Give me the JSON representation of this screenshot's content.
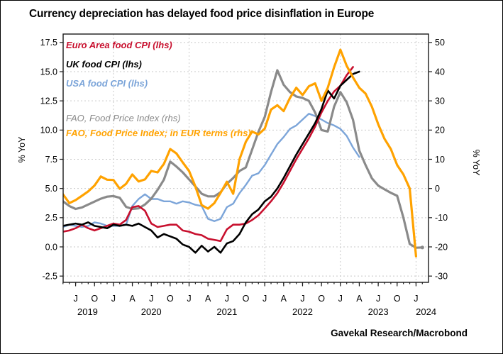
{
  "title": "Currency depreciation has delayed food price disinflation in Europe",
  "source": {
    "text": "Gavekal Research/Macrobond"
  },
  "chart_data": {
    "type": "line",
    "x_start": "2019-05",
    "x_unit": "month",
    "grid": true,
    "legend_position": "top-left-inside",
    "y_left": {
      "label": "% YoY",
      "ticks": [
        "17.5",
        "15.0",
        "12.5",
        "10.0",
        "7.5",
        "5.0",
        "2.5",
        "0.0",
        "-2.5"
      ]
    },
    "y_right": {
      "label": "% YoY",
      "ticks": [
        "50",
        "40",
        "30",
        "20",
        "10",
        "0",
        "-10",
        "-20",
        "-30"
      ]
    },
    "x_axis": {
      "month_ticks": [
        {
          "label": "J",
          "m": 2
        },
        {
          "label": "O",
          "m": 5
        },
        {
          "label": "J",
          "m": 8
        },
        {
          "label": "A",
          "m": 11
        },
        {
          "label": "J",
          "m": 14
        },
        {
          "label": "O",
          "m": 17
        },
        {
          "label": "J",
          "m": 20
        },
        {
          "label": "A",
          "m": 23
        },
        {
          "label": "J",
          "m": 26
        },
        {
          "label": "O",
          "m": 29
        },
        {
          "label": "J",
          "m": 32
        },
        {
          "label": "A",
          "m": 35
        },
        {
          "label": "J",
          "m": 38
        },
        {
          "label": "O",
          "m": 41
        },
        {
          "label": "J",
          "m": 44
        },
        {
          "label": "A",
          "m": 47
        },
        {
          "label": "J",
          "m": 50
        },
        {
          "label": "O",
          "m": 53
        },
        {
          "label": "J",
          "m": 56
        }
      ],
      "year_labels": [
        {
          "label": "2019",
          "m": 3.9
        },
        {
          "label": "2020",
          "m": 14
        },
        {
          "label": "2021",
          "m": 26
        },
        {
          "label": "2022",
          "m": 38
        },
        {
          "label": "2023",
          "m": 50
        },
        {
          "label": "2024",
          "m": 57.6
        }
      ],
      "year_start_gridlines_m": [
        8,
        20,
        32,
        44,
        56
      ]
    },
    "series": [
      {
        "name": "Euro Area food CPI (lhs)",
        "axis": "left",
        "color": "#C8102E",
        "width": 2.6,
        "values": [
          1.3,
          1.4,
          1.6,
          1.9,
          1.6,
          1.4,
          1.6,
          1.8,
          2.0,
          1.9,
          2.3,
          3.4,
          3.5,
          3.1,
          2.0,
          1.7,
          1.8,
          1.9,
          1.9,
          1.4,
          1.3,
          1.1,
          1.0,
          0.7,
          0.6,
          0.5,
          1.5,
          1.9,
          1.9,
          2.0,
          2.3,
          2.7,
          3.3,
          3.9,
          4.6,
          5.5,
          6.5,
          7.5,
          8.4,
          9.3,
          10.3,
          11.5,
          12.5,
          13.3,
          13.8,
          14.7,
          15.4
        ]
      },
      {
        "name": "UK food CPI (lhs)",
        "axis": "left",
        "color": "#000000",
        "width": 2.6,
        "values": [
          1.8,
          1.9,
          2.0,
          1.9,
          2.1,
          1.8,
          1.7,
          1.6,
          1.9,
          1.8,
          1.9,
          1.8,
          2.0,
          1.7,
          1.4,
          0.8,
          1.1,
          0.9,
          0.7,
          0.2,
          0.0,
          -0.5,
          0.1,
          -0.4,
          0.0,
          -0.5,
          0.3,
          0.5,
          1.1,
          2.1,
          2.8,
          3.2,
          3.9,
          4.3,
          5.0,
          5.9,
          6.9,
          7.9,
          8.8,
          9.7,
          10.6,
          11.8,
          13.4,
          12.7,
          13.8,
          14.3,
          14.8,
          15.0
        ]
      },
      {
        "name": "USA food CPI (lhs)",
        "axis": "left",
        "color": "#7CA5D9",
        "width": 2.4,
        "values": [
          1.7,
          1.9,
          1.8,
          1.7,
          1.8,
          2.1,
          2.0,
          1.8,
          1.8,
          1.8,
          1.9,
          3.5,
          4.1,
          4.5,
          4.1,
          4.1,
          3.9,
          3.9,
          3.7,
          3.9,
          3.8,
          3.6,
          3.5,
          2.4,
          2.2,
          2.4,
          3.4,
          3.7,
          4.6,
          5.3,
          6.1,
          6.3,
          7.0,
          7.9,
          8.8,
          9.4,
          10.1,
          10.4,
          10.9,
          11.4,
          11.2,
          10.9,
          10.6,
          10.4,
          10.1,
          9.5,
          8.5,
          7.7
        ]
      },
      {
        "name": "FAO, Food Price Index (rhs)",
        "axis": "right",
        "color": "#8A8A8A",
        "width": 3.2,
        "end_dot": true,
        "values": [
          -4.4,
          -6.0,
          -7.0,
          -6.5,
          -5.5,
          -4.5,
          -3.5,
          -2.8,
          -2.6,
          -3.2,
          -6.3,
          -7.0,
          -6.8,
          -5.5,
          -3.5,
          -0.5,
          3.0,
          9.2,
          7.5,
          5.5,
          3.1,
          0.7,
          -1.8,
          -2.7,
          -2.7,
          -1.3,
          1.6,
          3.6,
          6.0,
          7.2,
          13.3,
          19.4,
          24.5,
          33.0,
          40.5,
          35.5,
          33.0,
          31.5,
          31.0,
          30.0,
          26.0,
          20.0,
          19.5,
          28.0,
          33.0,
          29.5,
          23.5,
          13.0,
          8.0,
          3.5,
          1.0,
          -0.3,
          -1.5,
          -2.5,
          -10.0,
          -19.0,
          -20.3,
          -20.2
        ]
      },
      {
        "name": "FAO, Food Price Index; in EUR terms (rhs)",
        "axis": "right",
        "color": "#FFA200",
        "width": 3.2,
        "values": [
          -2.0,
          -5.0,
          -4.0,
          -2.5,
          -1.0,
          1.0,
          4.1,
          3.0,
          2.9,
          -0.1,
          1.6,
          4.8,
          2.4,
          3.1,
          6.0,
          5.5,
          8.4,
          13.5,
          12.0,
          8.9,
          6.0,
          0.7,
          -5.7,
          -6.9,
          -5.0,
          -1.5,
          2.3,
          -1.8,
          10.0,
          16.0,
          19.5,
          18.5,
          20.5,
          27.0,
          28.5,
          26.5,
          31.0,
          34.5,
          32.0,
          35.0,
          36.0,
          30.0,
          34.5,
          41.5,
          47.5,
          42.0,
          38.0,
          34.5,
          32.5,
          28.0,
          22.0,
          17.0,
          13.5,
          8.0,
          4.8,
          0.0,
          -23.2
        ]
      }
    ],
    "draw_order": [
      2,
      3,
      0,
      1,
      4
    ],
    "colors": {
      "grid": "#C9C9C9",
      "frame": "#1A1A1A"
    }
  }
}
